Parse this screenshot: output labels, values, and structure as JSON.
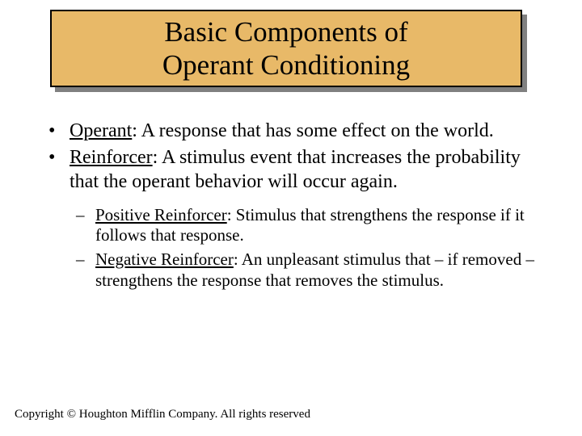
{
  "colors": {
    "background": "#ffffff",
    "title_fill": "#e8b968",
    "title_border": "#000000",
    "title_shadow": "#808080",
    "text": "#000000"
  },
  "typography": {
    "family": "Times New Roman",
    "title_fontsize_pt": 26,
    "body_fontsize_pt": 18,
    "sub_fontsize_pt": 16,
    "copyright_fontsize_pt": 11
  },
  "title": {
    "line1": "Basic Components of",
    "line2": "Operant Conditioning"
  },
  "bullets": [
    {
      "term": "Operant",
      "def": ": A response that has some effect on the world."
    },
    {
      "term": "Reinforcer",
      "def": ": A stimulus event that increases the probability that the operant behavior will occur again."
    }
  ],
  "sub_bullets": [
    {
      "term": "Positive Reinforcer",
      "def": ": Stimulus that strengthens the response if it follows that response."
    },
    {
      "term": "Negative Reinforcer",
      "def": ": An unpleasant stimulus that – if removed – strengthens the response that removes the stimulus."
    }
  ],
  "copyright": "Copyright © Houghton Mifflin Company.  All rights reserved"
}
